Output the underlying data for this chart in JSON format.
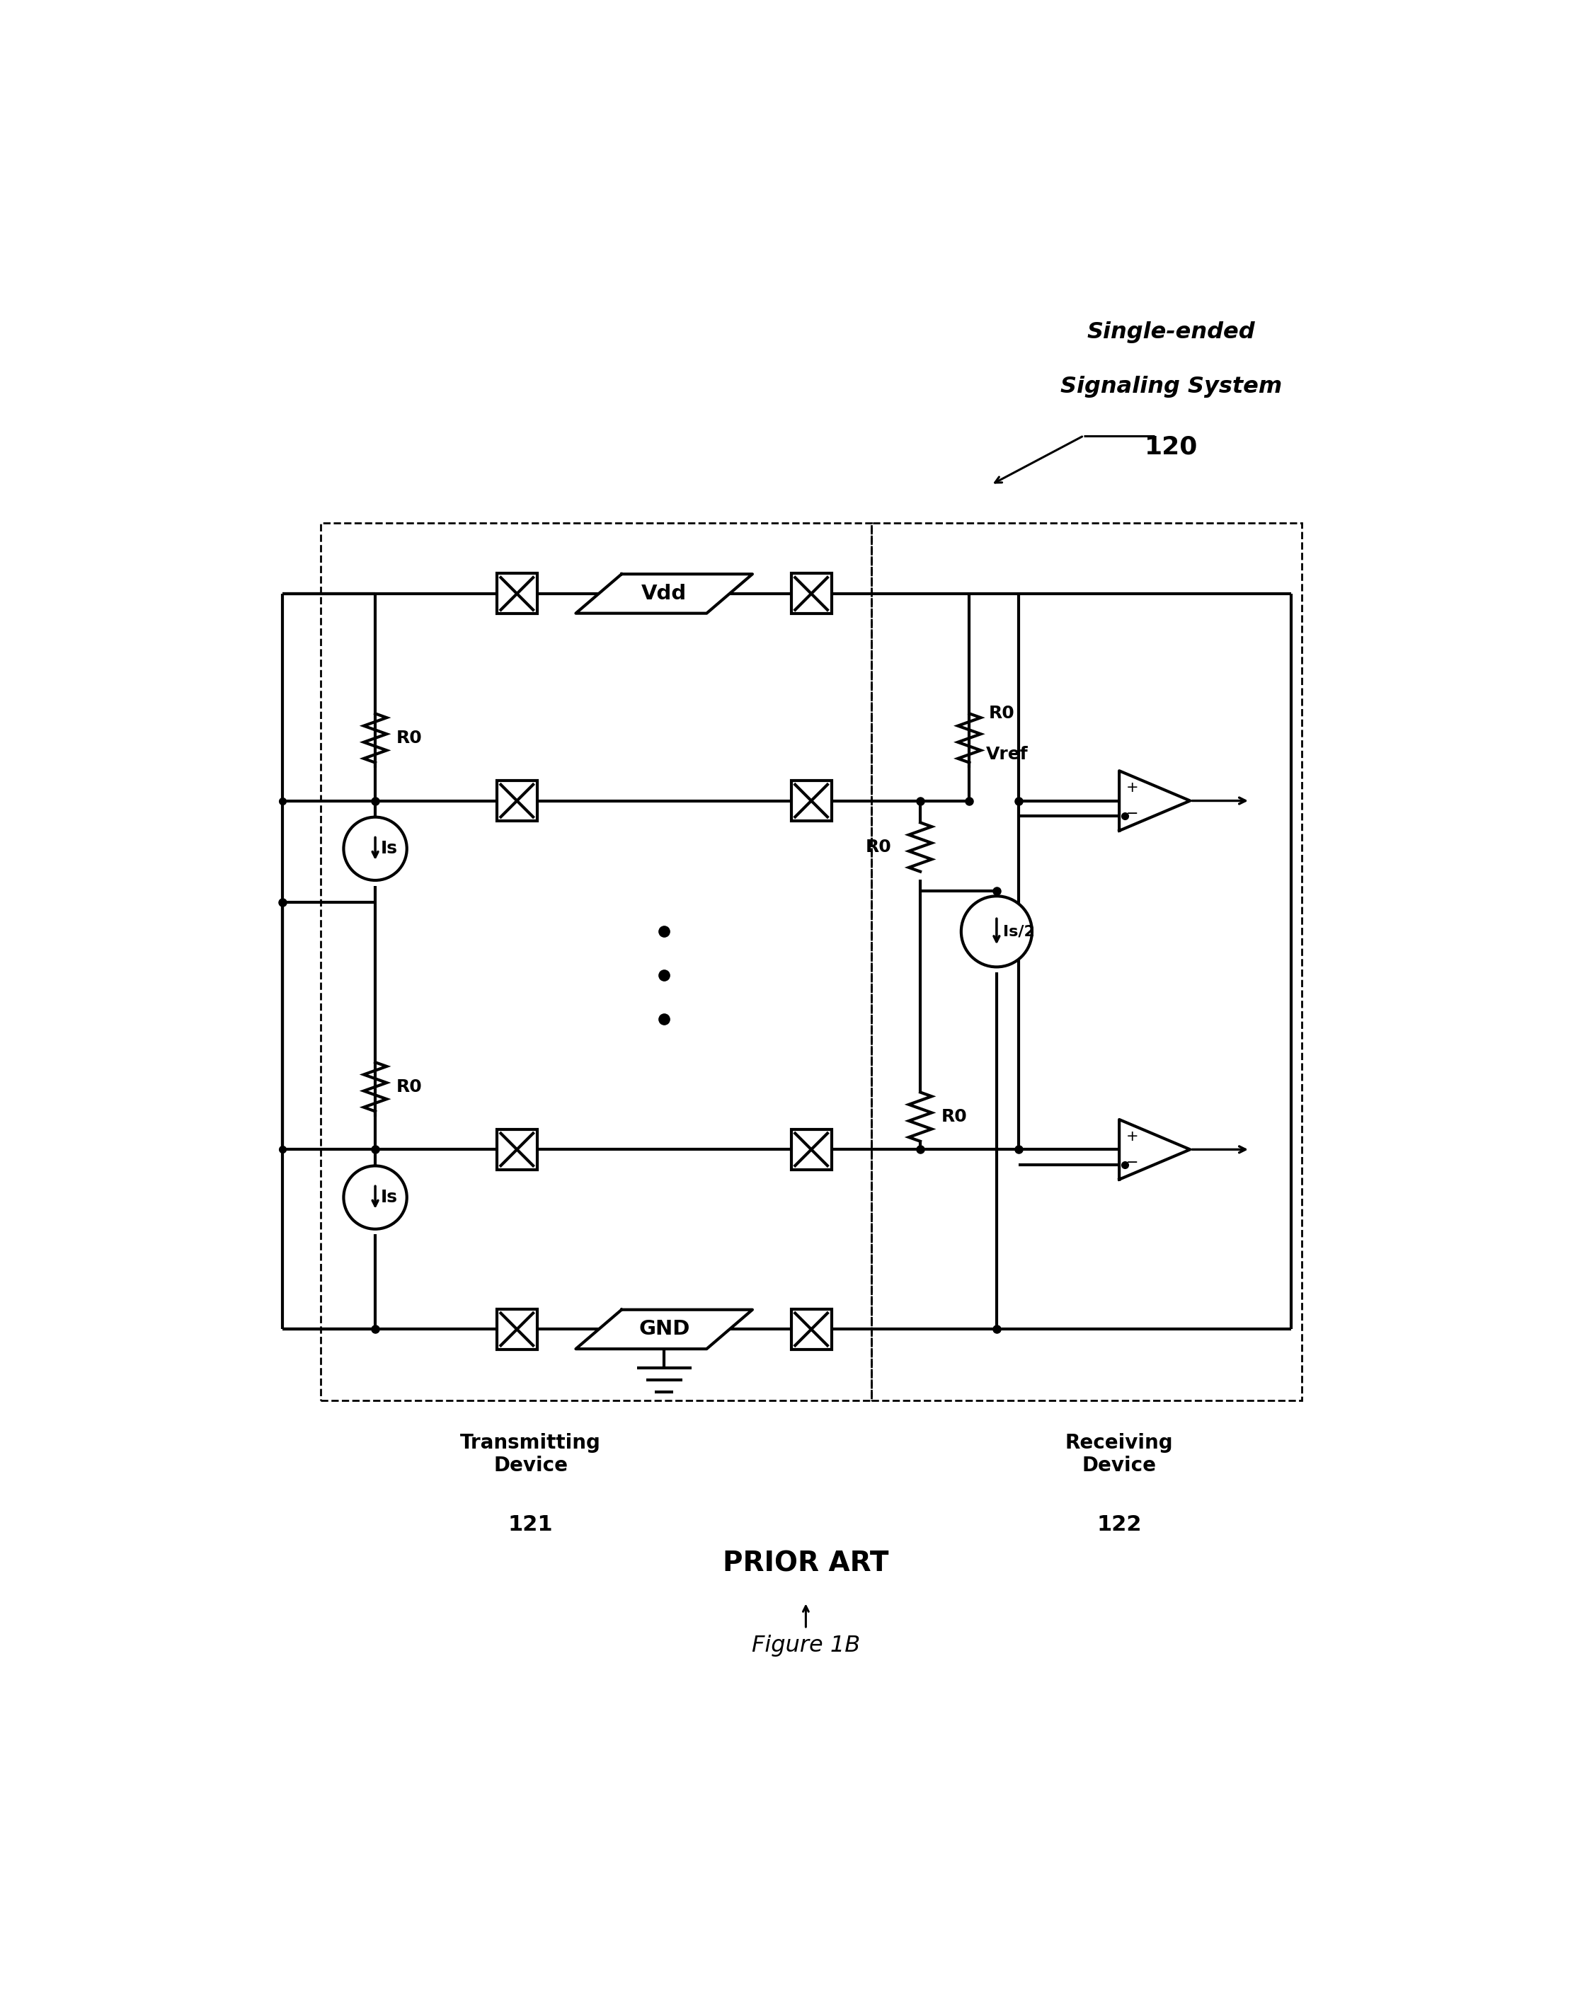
{
  "title": "Figure 1B",
  "prior_art_label": "PRIOR ART",
  "system_label_line1": "Single-ended",
  "system_label_line2": "Signaling System",
  "system_number": "120",
  "transmitting_label": "Transmitting\nDevice",
  "transmitting_number": "121",
  "receiving_label": "Receiving\nDevice",
  "receiving_number": "122",
  "bg_color": "#ffffff",
  "line_color": "#000000",
  "lw": 3.0,
  "dlw": 2.0
}
